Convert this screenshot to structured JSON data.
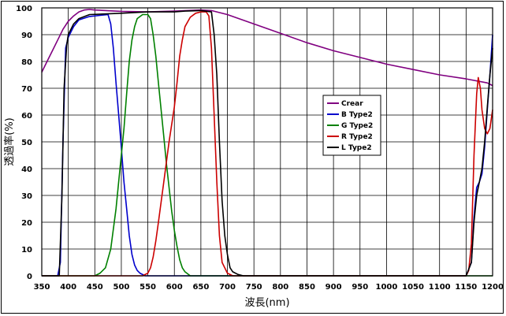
{
  "chart_data": {
    "type": "line",
    "title": "",
    "xlabel": "波長(nm)",
    "ylabel": "透過率(%)",
    "xlim": [
      350,
      1200
    ],
    "ylim": [
      0,
      100
    ],
    "xticks": [
      350,
      400,
      450,
      500,
      550,
      600,
      650,
      700,
      750,
      800,
      850,
      900,
      950,
      1000,
      1050,
      1100,
      1150,
      1200
    ],
    "yticks": [
      0,
      10,
      20,
      30,
      40,
      50,
      60,
      70,
      80,
      90,
      100
    ],
    "grid": true,
    "legend_position": "center-right",
    "series": [
      {
        "name": "Crear",
        "color": "#800080",
        "points": [
          [
            350,
            76
          ],
          [
            360,
            80
          ],
          [
            370,
            84
          ],
          [
            380,
            88
          ],
          [
            390,
            92
          ],
          [
            400,
            95
          ],
          [
            410,
            97
          ],
          [
            420,
            98.5
          ],
          [
            430,
            99.2
          ],
          [
            440,
            99.4
          ],
          [
            450,
            99.2
          ],
          [
            500,
            98.7
          ],
          [
            550,
            98.5
          ],
          [
            600,
            98.8
          ],
          [
            650,
            99.2
          ],
          [
            670,
            99
          ],
          [
            700,
            97.5
          ],
          [
            750,
            94
          ],
          [
            800,
            90.5
          ],
          [
            850,
            87
          ],
          [
            900,
            84
          ],
          [
            950,
            81.5
          ],
          [
            1000,
            79
          ],
          [
            1050,
            77
          ],
          [
            1100,
            75
          ],
          [
            1150,
            73.5
          ],
          [
            1190,
            72
          ],
          [
            1200,
            71
          ]
        ]
      },
      {
        "name": "B Type2",
        "color": "#0000cc",
        "points": [
          [
            350,
            0
          ],
          [
            380,
            0
          ],
          [
            385,
            5
          ],
          [
            390,
            50
          ],
          [
            395,
            85
          ],
          [
            400,
            89
          ],
          [
            410,
            93
          ],
          [
            420,
            95.5
          ],
          [
            440,
            96.8
          ],
          [
            460,
            97.2
          ],
          [
            475,
            97.5
          ],
          [
            480,
            94
          ],
          [
            485,
            85
          ],
          [
            490,
            72
          ],
          [
            495,
            60
          ],
          [
            500,
            48
          ],
          [
            505,
            35
          ],
          [
            510,
            25
          ],
          [
            515,
            15
          ],
          [
            520,
            8
          ],
          [
            525,
            4
          ],
          [
            530,
            2
          ],
          [
            535,
            1
          ],
          [
            545,
            0
          ],
          [
            1150,
            0
          ],
          [
            1160,
            5
          ],
          [
            1165,
            22
          ],
          [
            1170,
            33
          ],
          [
            1175,
            35
          ],
          [
            1180,
            38
          ],
          [
            1185,
            48
          ],
          [
            1190,
            62
          ],
          [
            1195,
            75
          ],
          [
            1200,
            90
          ]
        ]
      },
      {
        "name": "G Type2",
        "color": "#008000",
        "points": [
          [
            350,
            0
          ],
          [
            450,
            0
          ],
          [
            460,
            1
          ],
          [
            470,
            3
          ],
          [
            480,
            10
          ],
          [
            490,
            25
          ],
          [
            500,
            45
          ],
          [
            505,
            55
          ],
          [
            510,
            68
          ],
          [
            515,
            80
          ],
          [
            520,
            88
          ],
          [
            525,
            93
          ],
          [
            530,
            96
          ],
          [
            540,
            97.5
          ],
          [
            550,
            97.5
          ],
          [
            555,
            96
          ],
          [
            560,
            90
          ],
          [
            565,
            82
          ],
          [
            570,
            72
          ],
          [
            575,
            62
          ],
          [
            580,
            52
          ],
          [
            585,
            42
          ],
          [
            590,
            33
          ],
          [
            595,
            24
          ],
          [
            600,
            17
          ],
          [
            605,
            11
          ],
          [
            610,
            6
          ],
          [
            615,
            3
          ],
          [
            620,
            1.5
          ],
          [
            630,
            0
          ],
          [
            1200,
            0
          ]
        ]
      },
      {
        "name": "R Type2",
        "color": "#cc0000",
        "points": [
          [
            350,
            0
          ],
          [
            540,
            0
          ],
          [
            550,
            1
          ],
          [
            555,
            3
          ],
          [
            560,
            7
          ],
          [
            565,
            13
          ],
          [
            570,
            20
          ],
          [
            580,
            35
          ],
          [
            590,
            50
          ],
          [
            600,
            63
          ],
          [
            605,
            72
          ],
          [
            610,
            82
          ],
          [
            615,
            88
          ],
          [
            620,
            93
          ],
          [
            630,
            96.5
          ],
          [
            640,
            98
          ],
          [
            650,
            98.5
          ],
          [
            660,
            98.5
          ],
          [
            665,
            97
          ],
          [
            670,
            85
          ],
          [
            675,
            60
          ],
          [
            680,
            35
          ],
          [
            685,
            15
          ],
          [
            690,
            5
          ],
          [
            700,
            1
          ],
          [
            710,
            0
          ],
          [
            1150,
            0
          ],
          [
            1155,
            2
          ],
          [
            1160,
            12
          ],
          [
            1165,
            45
          ],
          [
            1170,
            68
          ],
          [
            1173,
            74
          ],
          [
            1177,
            70
          ],
          [
            1180,
            62
          ],
          [
            1185,
            55
          ],
          [
            1190,
            53
          ],
          [
            1195,
            55
          ],
          [
            1200,
            62
          ]
        ]
      },
      {
        "name": "L Type2",
        "color": "#000000",
        "points": [
          [
            350,
            0
          ],
          [
            383,
            0
          ],
          [
            388,
            30
          ],
          [
            392,
            70
          ],
          [
            397,
            86
          ],
          [
            400,
            90
          ],
          [
            410,
            94
          ],
          [
            420,
            96
          ],
          [
            440,
            97.5
          ],
          [
            500,
            98
          ],
          [
            550,
            98.5
          ],
          [
            600,
            98.5
          ],
          [
            620,
            98.8
          ],
          [
            650,
            99
          ],
          [
            670,
            98.5
          ],
          [
            675,
            90
          ],
          [
            680,
            75
          ],
          [
            685,
            50
          ],
          [
            690,
            28
          ],
          [
            695,
            15
          ],
          [
            700,
            8
          ],
          [
            705,
            3
          ],
          [
            710,
            1.5
          ],
          [
            720,
            0.5
          ],
          [
            730,
            0
          ],
          [
            1150,
            0
          ],
          [
            1160,
            5
          ],
          [
            1165,
            20
          ],
          [
            1170,
            30
          ],
          [
            1175,
            35
          ],
          [
            1180,
            40
          ],
          [
            1185,
            50
          ],
          [
            1190,
            63
          ],
          [
            1195,
            75
          ],
          [
            1200,
            85
          ]
        ]
      }
    ]
  }
}
